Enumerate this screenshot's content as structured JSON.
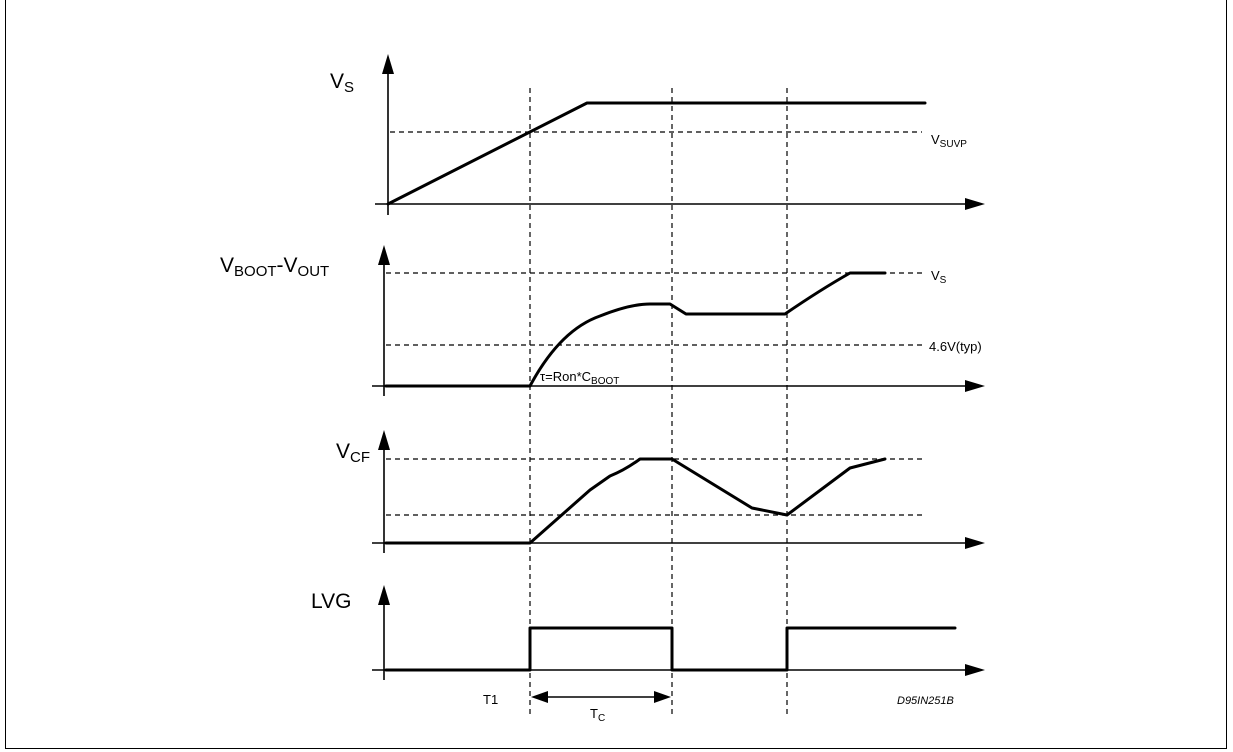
{
  "labels": {
    "vs": "V",
    "vs_sub": "S",
    "vboot_a": "V",
    "vboot_a_sub": "BOOT",
    "vboot_dash": "-V",
    "vboot_b_sub": "OUT",
    "vcf": "V",
    "vcf_sub": "CF",
    "lvg": "LVG"
  },
  "annotations": {
    "vsuvp": "V",
    "vsuvp_sub": "SUVP",
    "vs_ref": "V",
    "vs_ref_sub": "S",
    "typ_ref": "4.6V(typ)",
    "tau_a": "τ=Ron*C",
    "tau_sub": "BOOT",
    "t1": "T1",
    "tc": "T",
    "tc_sub": "C",
    "code": "D95IN251B"
  }
}
